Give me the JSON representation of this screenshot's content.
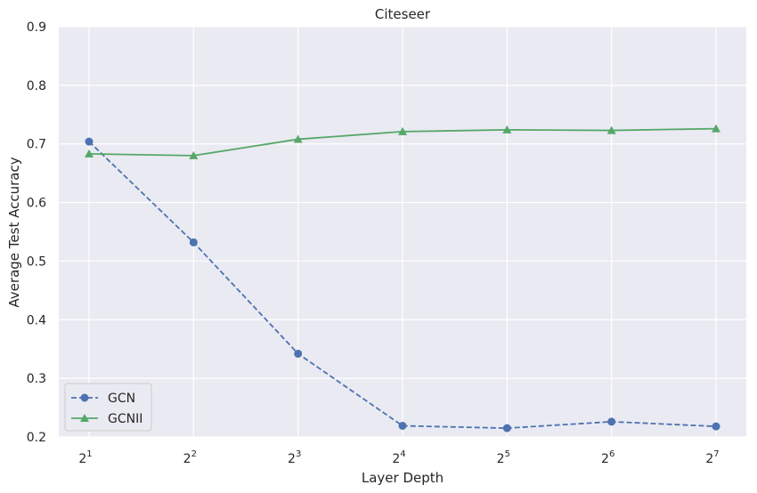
{
  "chart_data": {
    "type": "line",
    "title": "Citeseer",
    "xlabel": "Layer Depth",
    "ylabel": "Average Test Accuracy",
    "x_tick_bases": [
      "2",
      "2",
      "2",
      "2",
      "2",
      "2",
      "2"
    ],
    "x_tick_exponents": [
      "1",
      "2",
      "3",
      "4",
      "5",
      "6",
      "7"
    ],
    "y_ticks": [
      "0.2",
      "0.3",
      "0.4",
      "0.5",
      "0.6",
      "0.7",
      "0.8",
      "0.9"
    ],
    "ylim": [
      0.2,
      0.9
    ],
    "grid": true,
    "legend_position": "lower-left",
    "series": [
      {
        "name": "GCN",
        "marker": "circle",
        "linestyle": "dashed",
        "color": "#4c72b0",
        "values": [
          0.704,
          0.532,
          0.342,
          0.219,
          0.215,
          0.226,
          0.218
        ]
      },
      {
        "name": "GCNII",
        "marker": "triangle",
        "linestyle": "solid",
        "color": "#55a868",
        "values": [
          0.683,
          0.68,
          0.708,
          0.721,
          0.724,
          0.723,
          0.726
        ]
      }
    ]
  }
}
